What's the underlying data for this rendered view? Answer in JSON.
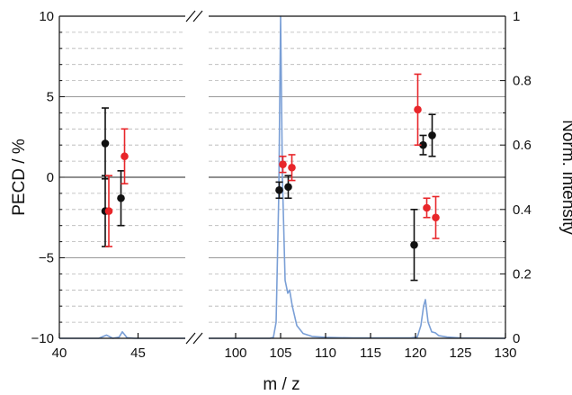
{
  "chart_data": {
    "type": "scatter",
    "title": "",
    "xlabel": "m / z",
    "ylabel": "PECD / %",
    "y2label": "Norm. Intensity",
    "ylim": [
      -10,
      10
    ],
    "y2lim": [
      0,
      1
    ],
    "x_segments": [
      {
        "xlim": [
          40,
          48
        ],
        "ticks": [
          40,
          45
        ]
      },
      {
        "xlim": [
          97,
          130
        ],
        "ticks": [
          100,
          105,
          110,
          115,
          120,
          125,
          130
        ]
      }
    ],
    "axis_break": true,
    "y_ticks": [
      -10,
      -5,
      0,
      5,
      10
    ],
    "y2_ticks": [
      0,
      0.2,
      0.4,
      0.6,
      0.8,
      1
    ],
    "grid": "horizontal: solid major lines at ±5, dashed minor lines every 1 unit",
    "zero_line": true,
    "colors": {
      "black": "#111111",
      "red": "#e8262a",
      "spectrum": "#7a9fd6"
    },
    "series": [
      {
        "color": "black",
        "points": [
          {
            "x": 43,
            "y": 2.1,
            "err": 2.2
          },
          {
            "x": 43,
            "y": -2.1,
            "err": 2.2
          },
          {
            "x": 44,
            "y": -1.3,
            "err": 1.7
          },
          {
            "x": 105,
            "y": -0.8,
            "err": 0.5
          },
          {
            "x": 106,
            "y": -0.6,
            "err": 0.7
          },
          {
            "x": 120,
            "y": -4.2,
            "err": 2.2
          },
          {
            "x": 121,
            "y": 2.0,
            "err": 0.6
          },
          {
            "x": 122,
            "y": 2.6,
            "err": 1.3
          }
        ]
      },
      {
        "color": "red",
        "points": [
          {
            "x": 43,
            "y": -2.1,
            "err": 2.2
          },
          {
            "x": 44,
            "y": 1.3,
            "err": 1.7
          },
          {
            "x": 105,
            "y": 0.8,
            "err": 0.5
          },
          {
            "x": 106,
            "y": 0.6,
            "err": 0.8
          },
          {
            "x": 120,
            "y": 4.2,
            "err": 2.2
          },
          {
            "x": 121,
            "y": -1.9,
            "err": 0.6
          },
          {
            "x": 122,
            "y": -2.5,
            "err": 1.3
          }
        ]
      }
    ],
    "spectrum": {
      "color": "spectrum",
      "axis": "y2",
      "points": [
        [
          40,
          0
        ],
        [
          42.5,
          0
        ],
        [
          43,
          0.01
        ],
        [
          43.4,
          0
        ],
        [
          43.8,
          0.004
        ],
        [
          44,
          0.02
        ],
        [
          44.3,
          0.002
        ],
        [
          44.8,
          0
        ],
        [
          48,
          0
        ],
        [
          97,
          0
        ],
        [
          103.8,
          0
        ],
        [
          104.2,
          0.003
        ],
        [
          104.5,
          0.05
        ],
        [
          104.8,
          0.45
        ],
        [
          105,
          1.0
        ],
        [
          105.2,
          0.5
        ],
        [
          105.5,
          0.18
        ],
        [
          105.8,
          0.14
        ],
        [
          106,
          0.15
        ],
        [
          106.3,
          0.1
        ],
        [
          106.8,
          0.04
        ],
        [
          107.5,
          0.015
        ],
        [
          108.5,
          0.006
        ],
        [
          110,
          0.003
        ],
        [
          113,
          0.001
        ],
        [
          119.5,
          0.001
        ],
        [
          120.2,
          0.004
        ],
        [
          120.6,
          0.04
        ],
        [
          120.9,
          0.1
        ],
        [
          121.1,
          0.12
        ],
        [
          121.4,
          0.05
        ],
        [
          121.8,
          0.02
        ],
        [
          122.2,
          0.017
        ],
        [
          122.6,
          0.008
        ],
        [
          123.5,
          0.004
        ],
        [
          125,
          0.001
        ],
        [
          130,
          0
        ]
      ]
    }
  }
}
